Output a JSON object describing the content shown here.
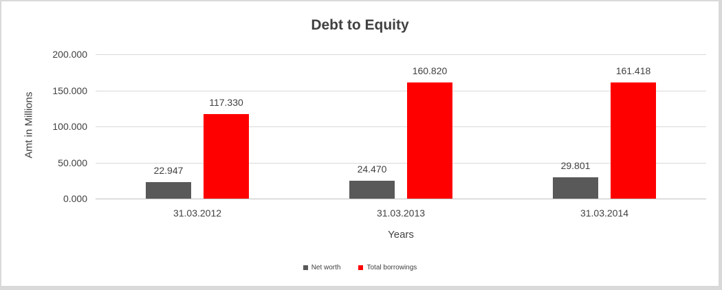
{
  "frame": {
    "background": "#ffffff",
    "border_color": "#d9d9d9"
  },
  "chart_data": {
    "type": "bar",
    "title": "Debt to Equity",
    "xlabel": "Years",
    "ylabel": "Amt in Millions",
    "categories": [
      "31.03.2012",
      "31.03.2013",
      "31.03.2014"
    ],
    "series": [
      {
        "name": "Net worth",
        "color": "#595959",
        "values": [
          22.947,
          24.47,
          29.801
        ],
        "labels": [
          "22.947",
          "24.470",
          "29.801"
        ]
      },
      {
        "name": "Total borrowings",
        "color": "#ff0000",
        "values": [
          117.33,
          160.82,
          161.418
        ],
        "labels": [
          "117.330",
          "160.820",
          "161.418"
        ]
      }
    ],
    "ylim": [
      0,
      200
    ],
    "yticks": [
      {
        "value": 0,
        "label": "0.000"
      },
      {
        "value": 50,
        "label": "50.000"
      },
      {
        "value": 100,
        "label": "100.000"
      },
      {
        "value": 150,
        "label": "150.000"
      },
      {
        "value": 200,
        "label": "200.000"
      }
    ],
    "grid": "horizontal",
    "legend_position": "bottom",
    "colors": {
      "text": "#404040",
      "gridline": "#d9d9d9",
      "axis_line": "#bfbfbf"
    }
  }
}
